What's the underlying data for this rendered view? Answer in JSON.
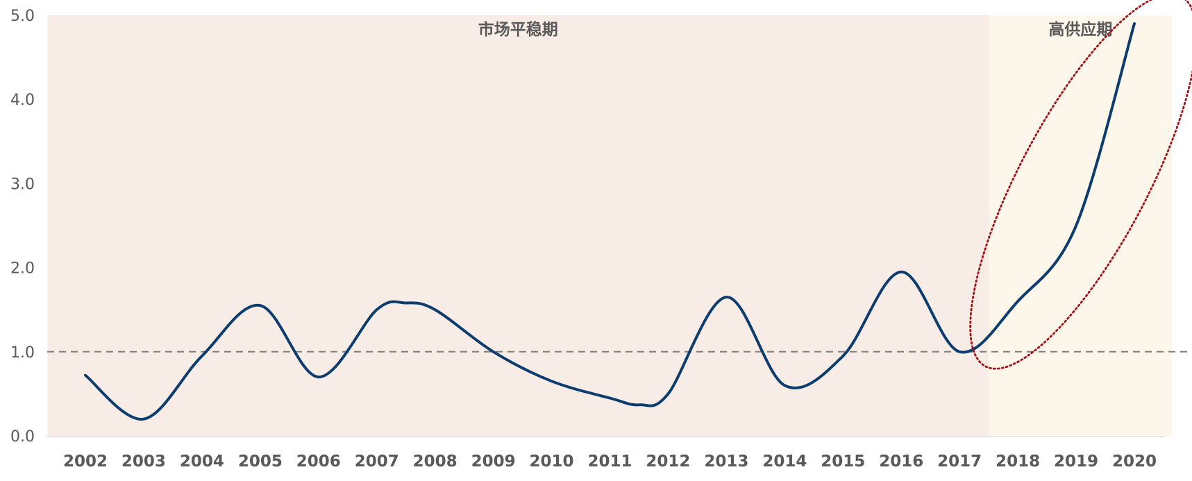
{
  "chart_data": {
    "type": "line",
    "title": "",
    "xlabel": "",
    "ylabel": "",
    "categories": [
      "2002",
      "2003",
      "2004",
      "2005",
      "2006",
      "2007",
      "2008",
      "2009",
      "2010",
      "2011",
      "2012",
      "2013",
      "2014",
      "2015",
      "2016",
      "2017",
      "2018",
      "2019",
      "2020"
    ],
    "y_ticks": [
      "0.0",
      "1.0",
      "2.0",
      "3.0",
      "4.0",
      "5.0"
    ],
    "ylim": [
      0,
      5
    ],
    "grid": false,
    "series": [
      {
        "color": "#0D3D6E",
        "smooth": true,
        "points": [
          {
            "x": 2002.0,
            "y": 0.72
          },
          {
            "x": 2003.0,
            "y": 0.2
          },
          {
            "x": 2004.0,
            "y": 0.95
          },
          {
            "x": 2005.0,
            "y": 1.55
          },
          {
            "x": 2006.0,
            "y": 0.7
          },
          {
            "x": 2007.0,
            "y": 1.5
          },
          {
            "x": 2007.5,
            "y": 1.58
          },
          {
            "x": 2008.0,
            "y": 1.5
          },
          {
            "x": 2009.0,
            "y": 1.0
          },
          {
            "x": 2010.0,
            "y": 0.65
          },
          {
            "x": 2011.0,
            "y": 0.45
          },
          {
            "x": 2011.5,
            "y": 0.37
          },
          {
            "x": 2012.0,
            "y": 0.5
          },
          {
            "x": 2013.0,
            "y": 1.65
          },
          {
            "x": 2014.0,
            "y": 0.6
          },
          {
            "x": 2015.0,
            "y": 0.95
          },
          {
            "x": 2016.0,
            "y": 1.95
          },
          {
            "x": 2017.0,
            "y": 1.0
          },
          {
            "x": 2018.0,
            "y": 1.6
          },
          {
            "x": 2019.0,
            "y": 2.5
          },
          {
            "x": 2020.0,
            "y": 4.9
          }
        ]
      }
    ],
    "reference_line": {
      "y": 1.0,
      "style": "dashed",
      "color": "#7F7F7F"
    },
    "regions": [
      {
        "label": "市场平稳期",
        "x_start": 2001.35,
        "x_end": 2017.5,
        "color": "#F7ECE6"
      },
      {
        "label": "高供应期",
        "x_start": 2017.5,
        "x_end": 2020.65,
        "color": "#FDF6EA"
      }
    ],
    "highlight": {
      "shape": "dotted-ellipse",
      "color": "#A50F15",
      "x_from": 2017.5,
      "x_to": 2020.75,
      "y_from": 0.9,
      "y_to": 5.15
    }
  }
}
